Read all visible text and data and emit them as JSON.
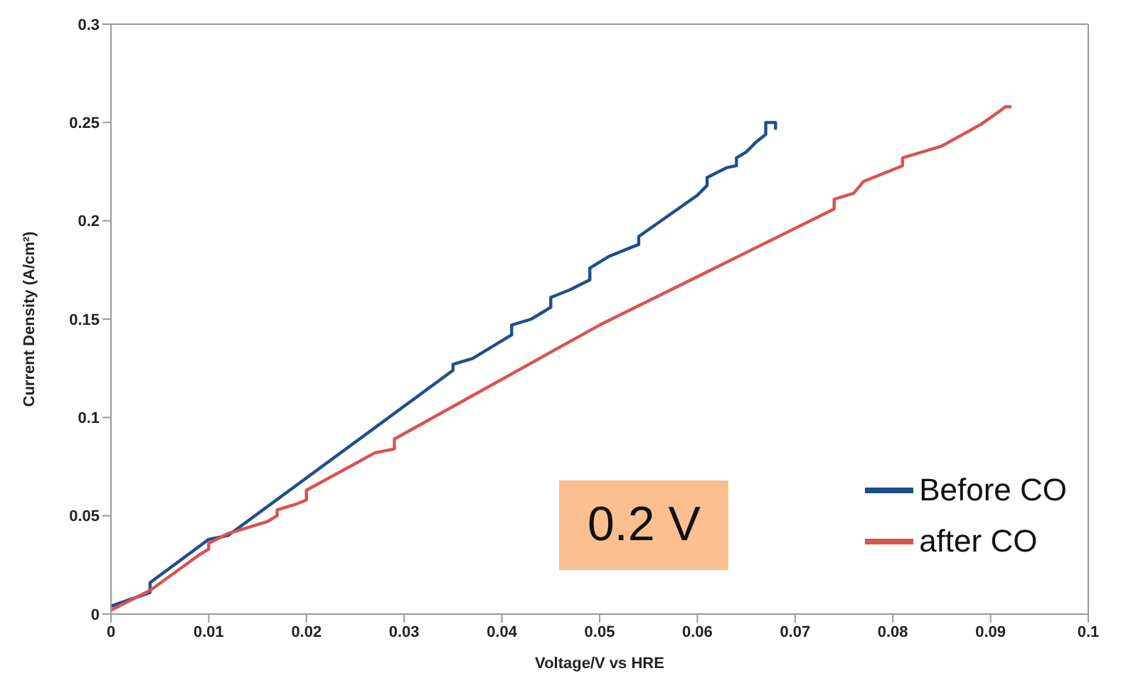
{
  "chart_data": {
    "type": "line",
    "xlabel": "Voltage/V vs HRE",
    "ylabel": "Current Density  (A/cm²)",
    "xlim": [
      0,
      0.1
    ],
    "xticks": [
      0,
      0.01,
      0.02,
      0.03,
      0.04,
      0.05,
      0.06,
      0.07,
      0.08,
      0.09,
      0.1
    ],
    "ylim": [
      0,
      0.3
    ],
    "yticks": [
      0,
      0.05,
      0.1,
      0.15,
      0.2,
      0.25,
      0.3
    ],
    "grid": false,
    "legend": "bottom right",
    "marker": "none",
    "line_style": "solid",
    "annotations": [
      "0.2 V"
    ],
    "series": [
      {
        "name": "Before CO",
        "color": "#1f4e8c",
        "x": [
          0,
          0.004,
          0.004,
          0.01,
          0.012,
          0.035,
          0.035,
          0.037,
          0.041,
          0.041,
          0.043,
          0.045,
          0.045,
          0.047,
          0.049,
          0.049,
          0.051,
          0.053,
          0.054,
          0.054,
          0.06,
          0.061,
          0.061,
          0.063,
          0.064,
          0.064,
          0.065,
          0.066,
          0.067,
          0.067,
          0.068,
          0.068
        ],
        "values": [
          0.004,
          0.011,
          0.016,
          0.038,
          0.04,
          0.124,
          0.127,
          0.13,
          0.142,
          0.147,
          0.15,
          0.156,
          0.161,
          0.165,
          0.17,
          0.176,
          0.182,
          0.186,
          0.188,
          0.192,
          0.213,
          0.218,
          0.222,
          0.227,
          0.228,
          0.232,
          0.235,
          0.24,
          0.244,
          0.25,
          0.25,
          0.247
        ]
      },
      {
        "name": "after CO",
        "color": "#d9534f",
        "x": [
          0,
          0.004,
          0.009,
          0.01,
          0.01,
          0.012,
          0.016,
          0.017,
          0.017,
          0.019,
          0.02,
          0.02,
          0.027,
          0.029,
          0.029,
          0.05,
          0.074,
          0.074,
          0.076,
          0.077,
          0.081,
          0.081,
          0.085,
          0.089,
          0.091,
          0.0915,
          0.092
        ],
        "values": [
          0.002,
          0.012,
          0.03,
          0.033,
          0.036,
          0.041,
          0.047,
          0.05,
          0.053,
          0.056,
          0.058,
          0.063,
          0.082,
          0.084,
          0.089,
          0.147,
          0.206,
          0.211,
          0.214,
          0.22,
          0.228,
          0.232,
          0.238,
          0.249,
          0.256,
          0.258,
          0.258
        ]
      }
    ]
  }
}
